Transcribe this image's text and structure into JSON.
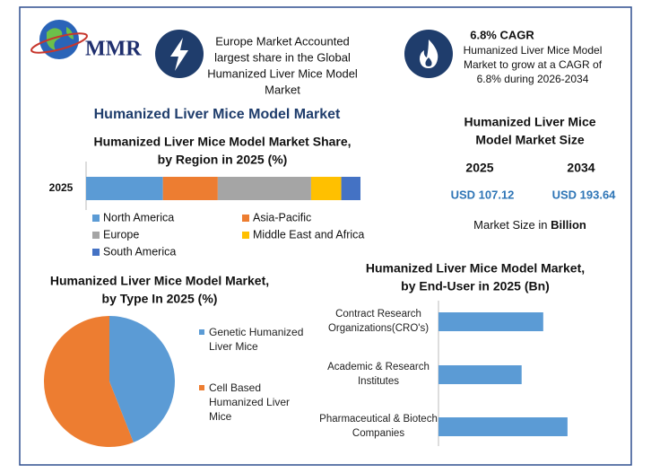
{
  "header": {
    "logo": "MMR",
    "highlight_1": [
      "Europe Market Accounted",
      "largest share in the Global",
      "Humanized Liver Mice Model",
      "Market"
    ],
    "highlight_2_title": "6.8% CAGR",
    "highlight_2": [
      "Humanized Liver Mice Model",
      "Market to grow at a CAGR of",
      "6.8% during 2026-2034"
    ]
  },
  "title": "Humanized Liver Mice Model Market",
  "market_size": {
    "title": [
      "Humanized Liver Mice",
      "Model Market Size"
    ],
    "years": [
      "2025",
      "2034"
    ],
    "values": [
      "USD 107.12",
      "USD 193.64"
    ],
    "note": "Market Size in ",
    "note_unit": "Billion"
  },
  "chart_data": [
    {
      "type": "stacked-bar",
      "title": [
        "Humanized Liver Mice Model Market Share,",
        "by Region in 2025 (%)"
      ],
      "categories": [
        "2025"
      ],
      "series": [
        {
          "name": "North America",
          "color": "#5b9bd5",
          "values": [
            28
          ]
        },
        {
          "name": "Asia-Pacific",
          "color": "#ed7d31",
          "values": [
            20
          ]
        },
        {
          "name": "Europe",
          "color": "#a5a5a5",
          "values": [
            34
          ]
        },
        {
          "name": "Middle East and Africa",
          "color": "#ffc000",
          "values": [
            11
          ]
        },
        {
          "name": "South America",
          "color": "#4472c4",
          "values": [
            7
          ]
        }
      ]
    },
    {
      "type": "pie",
      "title": [
        "Humanized Liver Mice Model Market,",
        "by Type In 2025 (%)"
      ],
      "categories": [
        "Genetic Humanized Liver Mice",
        "Cell Based Humanized Liver Mice"
      ],
      "values": [
        44,
        56
      ],
      "colors": [
        "#5b9bd5",
        "#ed7d31"
      ]
    },
    {
      "type": "hbar",
      "title": [
        "Humanized Liver Mice Model Market,",
        "by End-User in 2025 (Bn)"
      ],
      "categories": [
        "Contract Research Organizations(CRO's)",
        "Academic & Research Institutes",
        "Pharmaceutical & Biotech Companies"
      ],
      "values": [
        35.4,
        28.1,
        43.6
      ],
      "color": "#5b9bd5"
    }
  ]
}
